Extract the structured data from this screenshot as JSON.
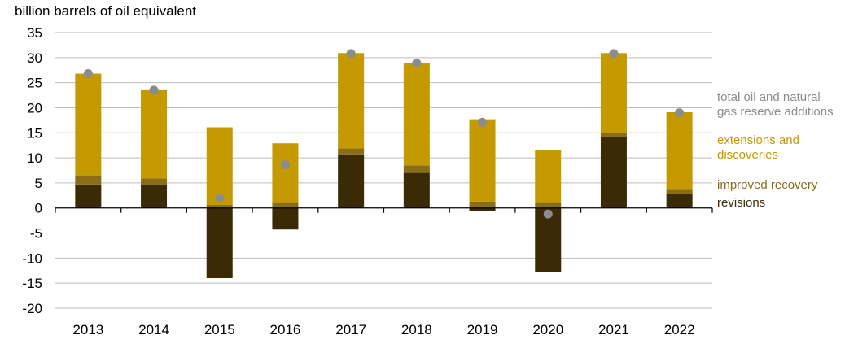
{
  "chart_data": {
    "type": "bar",
    "stacked": true,
    "ylabel": "billion barrels of oil equivalent",
    "ylim": [
      -20,
      35
    ],
    "yticks": [
      35,
      30,
      25,
      20,
      15,
      10,
      5,
      0,
      -5,
      -10,
      -15,
      -20
    ],
    "grid": true,
    "legend_position": "right",
    "categories": [
      "2013",
      "2014",
      "2015",
      "2016",
      "2017",
      "2018",
      "2019",
      "2020",
      "2021",
      "2022"
    ],
    "series": [
      {
        "name": "revisions",
        "color": "#3a2a06",
        "kind": "bar",
        "values": [
          4.7,
          4.6,
          -14.0,
          -4.3,
          10.7,
          7.0,
          -0.6,
          -12.7,
          14.2,
          2.8
        ]
      },
      {
        "name": "improved recovery",
        "color": "#8a6d16",
        "kind": "bar",
        "values": [
          1.8,
          1.3,
          0.6,
          1.0,
          1.2,
          1.5,
          1.3,
          1.0,
          0.8,
          0.8
        ]
      },
      {
        "name": "extensions and discoveries",
        "color": "#c49a00",
        "kind": "bar",
        "values": [
          20.3,
          17.6,
          15.5,
          11.9,
          19.0,
          20.4,
          16.4,
          10.5,
          15.9,
          15.5
        ]
      },
      {
        "name": "total oil and natural gas reserve additions",
        "color": "#8c8c8c",
        "kind": "point",
        "values": [
          26.8,
          23.5,
          2.0,
          8.6,
          30.8,
          28.9,
          17.1,
          -1.2,
          30.8,
          19.0
        ]
      }
    ],
    "legend": [
      {
        "lines": [
          "total oil and natural",
          "gas reserve additions"
        ],
        "color": "#8c8c8c"
      },
      {
        "lines": [
          "extensions and",
          "discoveries"
        ],
        "color": "#c49a00"
      },
      {
        "lines": [
          "improved recovery"
        ],
        "color": "#8a6d16"
      },
      {
        "lines": [
          "revisions"
        ],
        "color": "#3a2a06"
      }
    ]
  }
}
